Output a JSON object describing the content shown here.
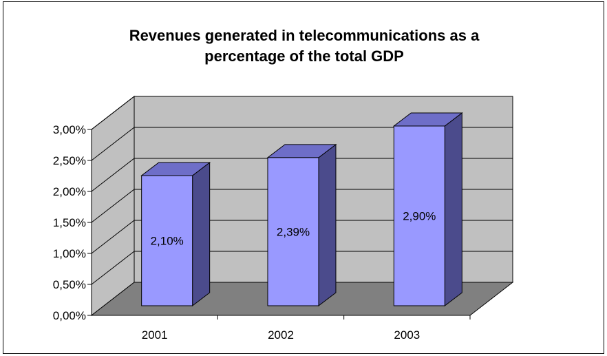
{
  "chart_data": {
    "type": "bar",
    "title": "Revenues generated in telecommunications as a percentage of the total GDP",
    "title_lines": [
      "Revenues generated in telecommunications as a",
      "percentage of the total GDP"
    ],
    "categories": [
      "2001",
      "2002",
      "2003"
    ],
    "values": [
      2.1,
      2.39,
      2.9
    ],
    "data_labels": [
      "2,10%",
      "2,39%",
      "2,90%"
    ],
    "y_ticks": [
      0,
      0.5,
      1.0,
      1.5,
      2.0,
      2.5,
      3.0
    ],
    "y_tick_labels": [
      "0,00%",
      "0,50%",
      "1,00%",
      "1,50%",
      "2,00%",
      "2,50%",
      "3,00%"
    ],
    "ylim": [
      0,
      3.0
    ],
    "xlabel": "",
    "ylabel": "",
    "grid": true,
    "legend": "none",
    "style": "3d-column"
  },
  "colors": {
    "bar_front": "#9999ff",
    "bar_side": "#4b4b8c",
    "bar_top": "#6e6ec8",
    "back_wall": "#c0c0c0",
    "side_wall": "#c0c0c0",
    "floor": "#808080"
  }
}
